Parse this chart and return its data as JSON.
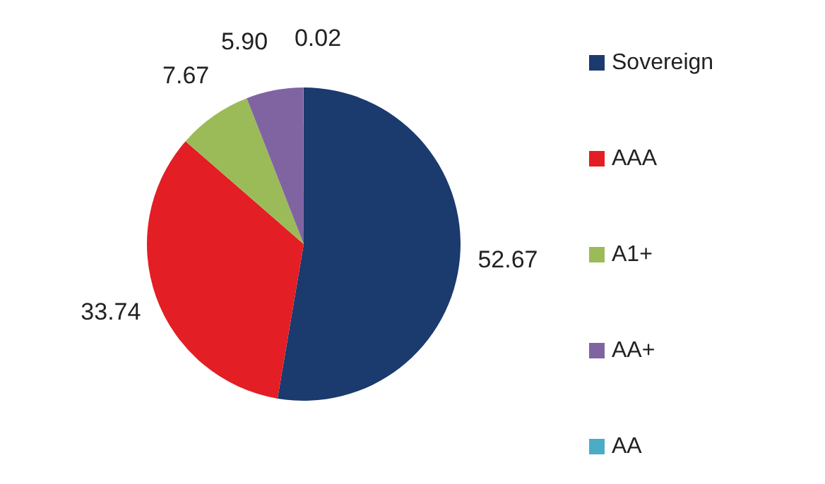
{
  "chart_data": {
    "type": "pie",
    "categories": [
      "Sovereign",
      "AAA",
      "A1+",
      "AA+",
      "AA"
    ],
    "values": [
      52.67,
      33.74,
      7.67,
      5.9,
      0.02
    ],
    "colors": [
      "#1b3a6e",
      "#e31e24",
      "#9bbb59",
      "#8064a2",
      "#4bacc6"
    ],
    "data_labels": true,
    "value_labels": [
      "52.67",
      "33.74",
      "7.67",
      "5.90",
      "0.02"
    ],
    "legend": "right"
  }
}
